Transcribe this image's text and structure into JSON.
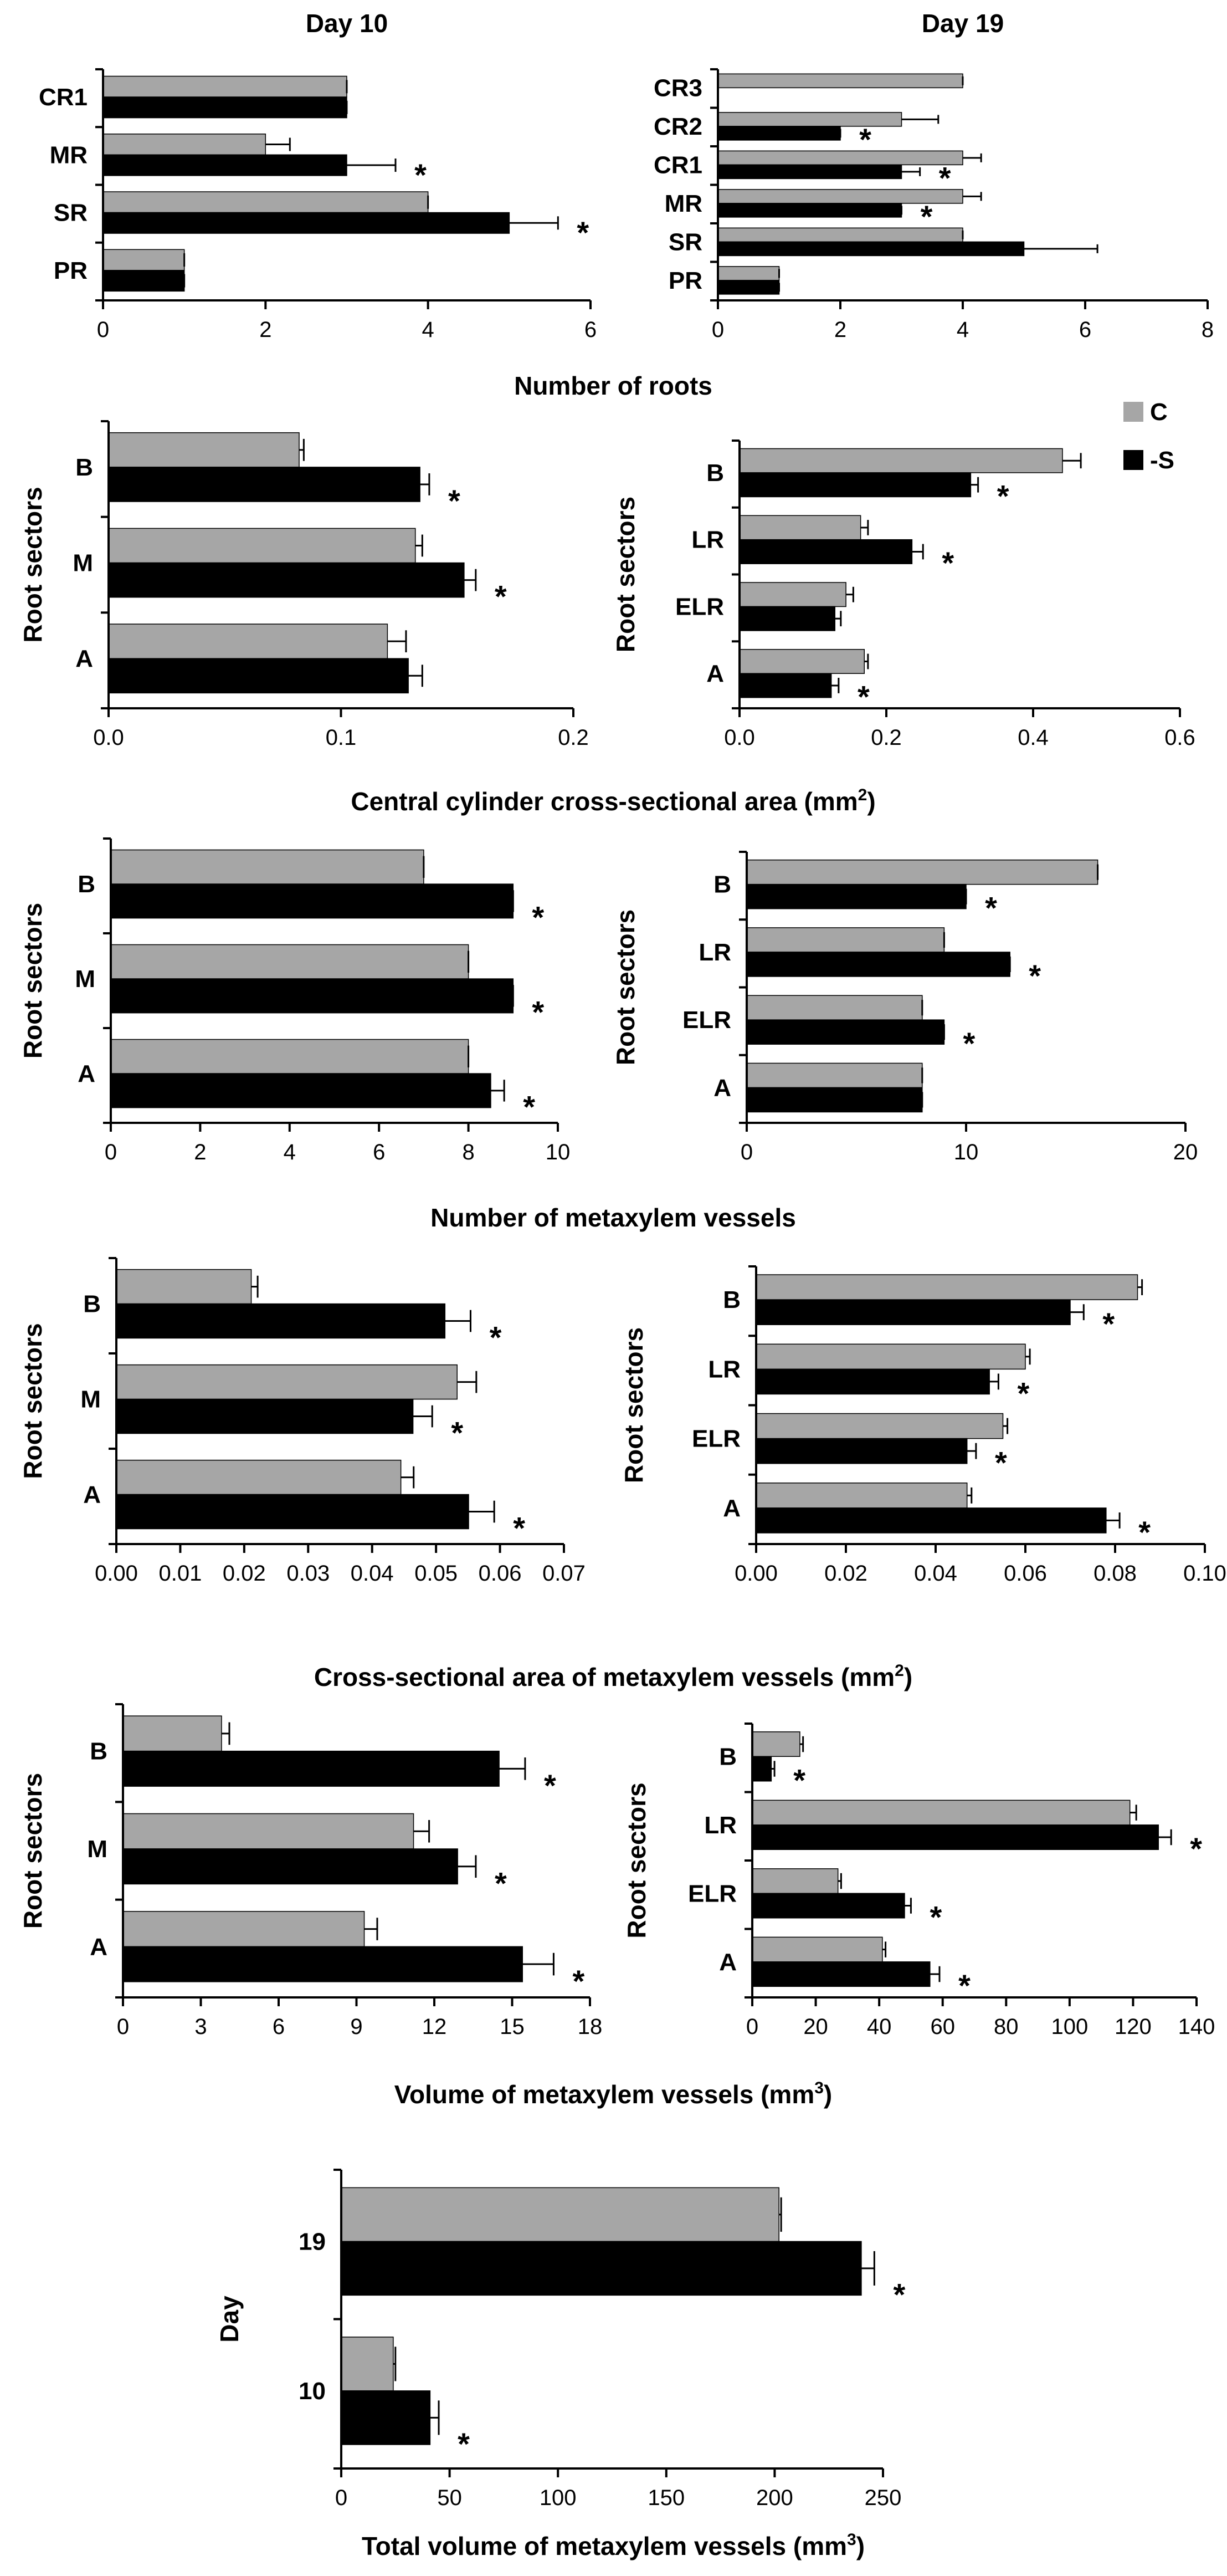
{
  "colors": {
    "control": "#a6a6a6",
    "minus_s": "#000000",
    "axis": "#000000"
  },
  "legend": [
    {
      "key": "control",
      "label": "C"
    },
    {
      "key": "minus_s",
      "label": "-S"
    }
  ],
  "row_titles": {
    "r1": "Number of roots",
    "r2": "Central cylinder cross-sectional area (mm",
    "r3": "Number of metaxylem vessels",
    "r4": "Cross-sectional area of metaxylem vessels (mm",
    "r5": "Volume of metaxylem vessels (mm",
    "r6": "Total volume of metaxylem vessels (mm"
  },
  "chart_data": [
    {
      "id": "c1",
      "type": "bar",
      "orientation": "horizontal",
      "title": "Day 10",
      "ylabel": "",
      "categories": [
        "PR",
        "SR",
        "MR",
        "CR1"
      ],
      "xlim": [
        0,
        6
      ],
      "xticks": [
        "0",
        "2",
        "4",
        "6"
      ],
      "series": [
        {
          "name": "C",
          "values": [
            1,
            4,
            2,
            3
          ],
          "errors": [
            0,
            0,
            0.3,
            0
          ]
        },
        {
          "name": "-S",
          "values": [
            1,
            5,
            3,
            3
          ],
          "errors": [
            0,
            0.6,
            0.6,
            0
          ]
        }
      ],
      "significant": [
        "",
        "*",
        "*",
        ""
      ]
    },
    {
      "id": "c2",
      "type": "bar",
      "orientation": "horizontal",
      "title": "Day 19",
      "ylabel": "",
      "categories": [
        "PR",
        "SR",
        "MR",
        "CR1",
        "CR2",
        "CR3"
      ],
      "xlim": [
        0,
        8
      ],
      "xticks": [
        "0",
        "2",
        "4",
        "6",
        "8"
      ],
      "series": [
        {
          "name": "C",
          "values": [
            1,
            4,
            4,
            4,
            3,
            4
          ],
          "errors": [
            0,
            0,
            0.3,
            0.3,
            0.6,
            0
          ]
        },
        {
          "name": "-S",
          "values": [
            1,
            5,
            3,
            3,
            2,
            0
          ],
          "errors": [
            0,
            1.2,
            0,
            0.3,
            0,
            0
          ]
        }
      ],
      "significant": [
        "",
        "",
        "*",
        "*",
        "*",
        ""
      ]
    },
    {
      "id": "c3",
      "type": "bar",
      "orientation": "horizontal",
      "title": "",
      "ylabel": "Root sectors",
      "categories": [
        "A",
        "M",
        "B"
      ],
      "xlim": [
        0,
        0.2
      ],
      "xticks": [
        "0.0",
        "0.1",
        "0.2"
      ],
      "series": [
        {
          "name": "C",
          "values": [
            0.12,
            0.132,
            0.082
          ],
          "errors": [
            0.008,
            0.003,
            0.002
          ]
        },
        {
          "name": "-S",
          "values": [
            0.129,
            0.153,
            0.134
          ],
          "errors": [
            0.006,
            0.005,
            0.004
          ]
        }
      ],
      "significant": [
        "",
        "*",
        "*"
      ]
    },
    {
      "id": "c4",
      "type": "bar",
      "orientation": "horizontal",
      "title": "",
      "ylabel": "Root sectors",
      "categories": [
        "A",
        "ELR",
        "LR",
        "B"
      ],
      "xlim": [
        0,
        0.6
      ],
      "xticks": [
        "0.0",
        "0.2",
        "0.4",
        "0.6"
      ],
      "series": [
        {
          "name": "C",
          "values": [
            0.17,
            0.145,
            0.165,
            0.44
          ],
          "errors": [
            0.005,
            0.01,
            0.01,
            0.025
          ]
        },
        {
          "name": "-S",
          "values": [
            0.125,
            0.13,
            0.235,
            0.315
          ],
          "errors": [
            0.01,
            0.008,
            0.015,
            0.01
          ]
        }
      ],
      "significant": [
        "*",
        "",
        "*",
        "*"
      ]
    },
    {
      "id": "c5",
      "type": "bar",
      "orientation": "horizontal",
      "title": "",
      "ylabel": "Root sectors",
      "categories": [
        "A",
        "M",
        "B"
      ],
      "xlim": [
        0,
        10
      ],
      "xticks": [
        "0",
        "2",
        "4",
        "6",
        "8",
        "10"
      ],
      "series": [
        {
          "name": "C",
          "values": [
            8,
            8,
            7
          ],
          "errors": [
            0,
            0,
            0
          ]
        },
        {
          "name": "-S",
          "values": [
            8.5,
            9,
            9
          ],
          "errors": [
            0.3,
            0,
            0
          ]
        }
      ],
      "significant": [
        "*",
        "*",
        "*"
      ]
    },
    {
      "id": "c6",
      "type": "bar",
      "orientation": "horizontal",
      "title": "",
      "ylabel": "Root sectors",
      "categories": [
        "A",
        "ELR",
        "LR",
        "B"
      ],
      "xlim": [
        0,
        20
      ],
      "xticks": [
        "0",
        "10",
        "20"
      ],
      "series": [
        {
          "name": "C",
          "values": [
            8,
            8,
            9,
            16
          ],
          "errors": [
            0,
            0,
            0,
            0
          ]
        },
        {
          "name": "-S",
          "values": [
            8,
            9,
            12,
            10
          ],
          "errors": [
            0,
            0,
            0,
            0
          ]
        }
      ],
      "significant": [
        "",
        "*",
        "*",
        "*"
      ]
    },
    {
      "id": "c7",
      "type": "bar",
      "orientation": "horizontal",
      "title": "",
      "ylabel": "Root sectors",
      "categories": [
        "A",
        "M",
        "B"
      ],
      "xlim": [
        0,
        0.07
      ],
      "xticks": [
        "0.00",
        "0.01",
        "0.02",
        "0.03",
        "0.04",
        "0.05",
        "0.06",
        "0.07"
      ],
      "series": [
        {
          "name": "C",
          "values": [
            0.0445,
            0.0533,
            0.0211
          ],
          "errors": [
            0.002,
            0.003,
            0.001
          ]
        },
        {
          "name": "-S",
          "values": [
            0.0551,
            0.0464,
            0.0514
          ],
          "errors": [
            0.004,
            0.003,
            0.004
          ]
        }
      ],
      "significant": [
        "*",
        "*",
        "*"
      ]
    },
    {
      "id": "c8",
      "type": "bar",
      "orientation": "horizontal",
      "title": "",
      "ylabel": "Root sectors",
      "categories": [
        "A",
        "ELR",
        "LR",
        "B"
      ],
      "xlim": [
        0,
        0.1
      ],
      "xticks": [
        "0.00",
        "0.02",
        "0.04",
        "0.06",
        "0.08",
        "0.10"
      ],
      "series": [
        {
          "name": "C",
          "values": [
            0.047,
            0.055,
            0.06,
            0.085
          ],
          "errors": [
            0.001,
            0.001,
            0.001,
            0.001
          ]
        },
        {
          "name": "-S",
          "values": [
            0.078,
            0.047,
            0.052,
            0.07
          ],
          "errors": [
            0.003,
            0.002,
            0.002,
            0.003
          ]
        }
      ],
      "significant": [
        "*",
        "*",
        "*",
        "*"
      ]
    },
    {
      "id": "c9",
      "type": "bar",
      "orientation": "horizontal",
      "title": "",
      "ylabel": "Root sectors",
      "categories": [
        "A",
        "M",
        "B"
      ],
      "xlim": [
        0,
        18
      ],
      "xticks": [
        "0",
        "3",
        "6",
        "9",
        "12",
        "15",
        "18"
      ],
      "series": [
        {
          "name": "C",
          "values": [
            9.3,
            11.2,
            3.8
          ],
          "errors": [
            0.5,
            0.6,
            0.3
          ]
        },
        {
          "name": "-S",
          "values": [
            15.4,
            12.9,
            14.5
          ],
          "errors": [
            1.2,
            0.7,
            1.0
          ]
        }
      ],
      "significant": [
        "*",
        "*",
        "*"
      ]
    },
    {
      "id": "c10",
      "type": "bar",
      "orientation": "horizontal",
      "title": "",
      "ylabel": "Root sectors",
      "categories": [
        "A",
        "ELR",
        "LR",
        "B"
      ],
      "xlim": [
        0,
        140
      ],
      "xticks": [
        "0",
        "20",
        "40",
        "60",
        "80",
        "100",
        "120",
        "140"
      ],
      "series": [
        {
          "name": "C",
          "values": [
            41,
            27,
            119,
            15
          ],
          "errors": [
            1,
            1,
            2,
            1
          ]
        },
        {
          "name": "-S",
          "values": [
            56,
            48,
            128,
            6
          ],
          "errors": [
            3,
            2,
            4,
            1
          ]
        }
      ],
      "significant": [
        "*",
        "*",
        "*",
        "*"
      ]
    },
    {
      "id": "c11",
      "type": "bar",
      "orientation": "horizontal",
      "title": "",
      "ylabel": "Day",
      "categories": [
        "10",
        "19"
      ],
      "xlim": [
        0,
        250
      ],
      "xticks": [
        "0",
        "50",
        "100",
        "150",
        "200",
        "250"
      ],
      "series": [
        {
          "name": "C",
          "values": [
            24,
            202
          ],
          "errors": [
            1,
            1
          ]
        },
        {
          "name": "-S",
          "values": [
            41,
            240
          ],
          "errors": [
            4,
            6
          ]
        }
      ],
      "significant": [
        "*",
        "*"
      ]
    }
  ]
}
